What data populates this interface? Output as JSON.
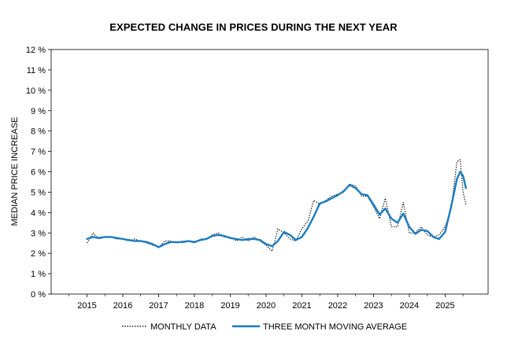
{
  "chart_data": {
    "type": "line",
    "title": "EXPECTED CHANGE IN PRICES DURING THE NEXT YEAR",
    "xlabel": "",
    "ylabel": "MEDIAN PRICE INCREASE",
    "xlim": [
      2014.0,
      2026.2
    ],
    "ylim": [
      0,
      12
    ],
    "y_ticks": [
      "0 %",
      "1 %",
      "2 %",
      "3 %",
      "4 %",
      "5 %",
      "6 %",
      "7 %",
      "8 %",
      "9 %",
      "10 %",
      "11 %",
      "12 %"
    ],
    "x_ticks": [
      "2015",
      "2016",
      "2017",
      "2018",
      "2019",
      "2020",
      "2021",
      "2022",
      "2023",
      "2024",
      "2025"
    ],
    "legend_position": "bottom",
    "grid": false,
    "series": [
      {
        "name": "MONTHLY DATA",
        "style": "dotted",
        "color": "#000000",
        "points": [
          [
            2015.0,
            2.5
          ],
          [
            2015.17,
            3.0
          ],
          [
            2015.33,
            2.7
          ],
          [
            2015.5,
            2.8
          ],
          [
            2015.67,
            2.8
          ],
          [
            2015.83,
            2.7
          ],
          [
            2016.0,
            2.7
          ],
          [
            2016.17,
            2.6
          ],
          [
            2016.33,
            2.7
          ],
          [
            2016.5,
            2.6
          ],
          [
            2016.67,
            2.5
          ],
          [
            2016.83,
            2.4
          ],
          [
            2017.0,
            2.3
          ],
          [
            2017.17,
            2.6
          ],
          [
            2017.33,
            2.6
          ],
          [
            2017.5,
            2.5
          ],
          [
            2017.67,
            2.6
          ],
          [
            2017.83,
            2.6
          ],
          [
            2018.0,
            2.5
          ],
          [
            2018.17,
            2.7
          ],
          [
            2018.33,
            2.7
          ],
          [
            2018.5,
            2.9
          ],
          [
            2018.67,
            3.0
          ],
          [
            2018.83,
            2.8
          ],
          [
            2019.0,
            2.8
          ],
          [
            2019.17,
            2.6
          ],
          [
            2019.33,
            2.8
          ],
          [
            2019.5,
            2.6
          ],
          [
            2019.67,
            2.8
          ],
          [
            2019.83,
            2.6
          ],
          [
            2020.0,
            2.4
          ],
          [
            2020.17,
            2.1
          ],
          [
            2020.33,
            3.2
          ],
          [
            2020.5,
            3.0
          ],
          [
            2020.67,
            2.7
          ],
          [
            2020.83,
            2.6
          ],
          [
            2021.0,
            3.2
          ],
          [
            2021.17,
            3.6
          ],
          [
            2021.33,
            4.6
          ],
          [
            2021.5,
            4.4
          ],
          [
            2021.67,
            4.6
          ],
          [
            2021.83,
            4.8
          ],
          [
            2022.0,
            4.9
          ],
          [
            2022.17,
            5.0
          ],
          [
            2022.33,
            5.4
          ],
          [
            2022.5,
            5.3
          ],
          [
            2022.67,
            4.8
          ],
          [
            2022.83,
            4.8
          ],
          [
            2023.0,
            4.3
          ],
          [
            2023.17,
            3.7
          ],
          [
            2023.33,
            4.7
          ],
          [
            2023.5,
            3.3
          ],
          [
            2023.67,
            3.3
          ],
          [
            2023.83,
            4.5
          ],
          [
            2024.0,
            3.0
          ],
          [
            2024.17,
            3.0
          ],
          [
            2024.33,
            3.3
          ],
          [
            2024.5,
            2.9
          ],
          [
            2024.67,
            2.8
          ],
          [
            2024.83,
            2.9
          ],
          [
            2025.0,
            3.3
          ],
          [
            2025.17,
            4.2
          ],
          [
            2025.33,
            6.5
          ],
          [
            2025.42,
            6.6
          ],
          [
            2025.5,
            5.0
          ],
          [
            2025.58,
            4.4
          ]
        ]
      },
      {
        "name": "THREE MONTH MOVING AVERAGE",
        "style": "solid",
        "color": "#1a7cc1",
        "points": [
          [
            2015.0,
            2.7
          ],
          [
            2015.17,
            2.8
          ],
          [
            2015.33,
            2.75
          ],
          [
            2015.5,
            2.8
          ],
          [
            2015.67,
            2.8
          ],
          [
            2015.83,
            2.75
          ],
          [
            2016.0,
            2.7
          ],
          [
            2016.17,
            2.65
          ],
          [
            2016.33,
            2.6
          ],
          [
            2016.5,
            2.6
          ],
          [
            2016.67,
            2.55
          ],
          [
            2016.83,
            2.45
          ],
          [
            2017.0,
            2.3
          ],
          [
            2017.17,
            2.45
          ],
          [
            2017.33,
            2.55
          ],
          [
            2017.5,
            2.55
          ],
          [
            2017.67,
            2.55
          ],
          [
            2017.83,
            2.6
          ],
          [
            2018.0,
            2.55
          ],
          [
            2018.17,
            2.65
          ],
          [
            2018.33,
            2.7
          ],
          [
            2018.5,
            2.85
          ],
          [
            2018.67,
            2.9
          ],
          [
            2018.83,
            2.85
          ],
          [
            2019.0,
            2.75
          ],
          [
            2019.17,
            2.7
          ],
          [
            2019.33,
            2.65
          ],
          [
            2019.5,
            2.7
          ],
          [
            2019.67,
            2.7
          ],
          [
            2019.83,
            2.65
          ],
          [
            2020.0,
            2.45
          ],
          [
            2020.17,
            2.35
          ],
          [
            2020.33,
            2.6
          ],
          [
            2020.5,
            3.05
          ],
          [
            2020.67,
            2.9
          ],
          [
            2020.83,
            2.65
          ],
          [
            2021.0,
            2.8
          ],
          [
            2021.17,
            3.25
          ],
          [
            2021.33,
            3.8
          ],
          [
            2021.5,
            4.45
          ],
          [
            2021.67,
            4.55
          ],
          [
            2021.83,
            4.7
          ],
          [
            2022.0,
            4.85
          ],
          [
            2022.17,
            5.05
          ],
          [
            2022.33,
            5.35
          ],
          [
            2022.5,
            5.2
          ],
          [
            2022.67,
            4.9
          ],
          [
            2022.83,
            4.85
          ],
          [
            2023.0,
            4.4
          ],
          [
            2023.17,
            3.9
          ],
          [
            2023.33,
            4.2
          ],
          [
            2023.5,
            3.7
          ],
          [
            2023.67,
            3.5
          ],
          [
            2023.83,
            3.95
          ],
          [
            2024.0,
            3.3
          ],
          [
            2024.17,
            2.95
          ],
          [
            2024.33,
            3.15
          ],
          [
            2024.5,
            3.1
          ],
          [
            2024.67,
            2.8
          ],
          [
            2024.83,
            2.7
          ],
          [
            2025.0,
            3.05
          ],
          [
            2025.17,
            4.3
          ],
          [
            2025.33,
            5.65
          ],
          [
            2025.42,
            6.0
          ],
          [
            2025.5,
            5.8
          ],
          [
            2025.58,
            5.2
          ]
        ]
      }
    ]
  }
}
